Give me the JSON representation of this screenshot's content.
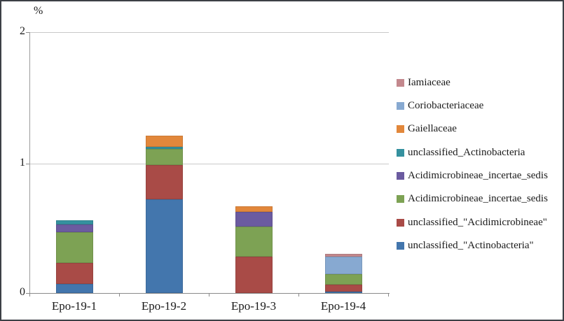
{
  "figure": {
    "unit_label": "%"
  },
  "axes": {
    "ytick_labels": [
      "0",
      "1",
      "2"
    ]
  },
  "chart_data": {
    "type": "bar",
    "stacked": true,
    "title": "",
    "xlabel": "",
    "ylabel": "%",
    "ylim": [
      0,
      2
    ],
    "yticks": [
      0,
      1,
      2
    ],
    "grid": "horizontal",
    "legend_position": "right",
    "categories": [
      "Epo-19-1",
      "Epo-19-2",
      "Epo-19-3",
      "Epo-19-4"
    ],
    "series": [
      {
        "name": "unclassified_\"Actinobacteria\"",
        "color": "#4376AD",
        "values": [
          0.07,
          0.72,
          0,
          0.013
        ]
      },
      {
        "name": "unclassified_\"Acidimicrobineae\"",
        "color": "#A94B47",
        "values": [
          0.165,
          0.26,
          0.28,
          0.053
        ]
      },
      {
        "name": "Acidimicrobineae_incertae_sedis",
        "color": "#7DA254",
        "values": [
          0.235,
          0.125,
          0.23,
          0.08
        ]
      },
      {
        "name": "Acidimicrobineae_incertae_sedis",
        "color": "#6B5BA0",
        "values": [
          0.06,
          0,
          0.115,
          0
        ]
      },
      {
        "name": "unclassified_Actinobacteria",
        "color": "#35919F",
        "values": [
          0.03,
          0.015,
          0,
          0
        ]
      },
      {
        "name": "Gaiellaceae",
        "color": "#E2873B",
        "values": [
          0,
          0.085,
          0.04,
          0
        ]
      },
      {
        "name": "Coriobacteriaceae",
        "color": "#87A9D1",
        "values": [
          0,
          0,
          0,
          0.133
        ]
      },
      {
        "name": "Iamiaceae",
        "color": "#C3888D",
        "values": [
          0,
          0,
          0,
          0.022
        ]
      }
    ]
  }
}
